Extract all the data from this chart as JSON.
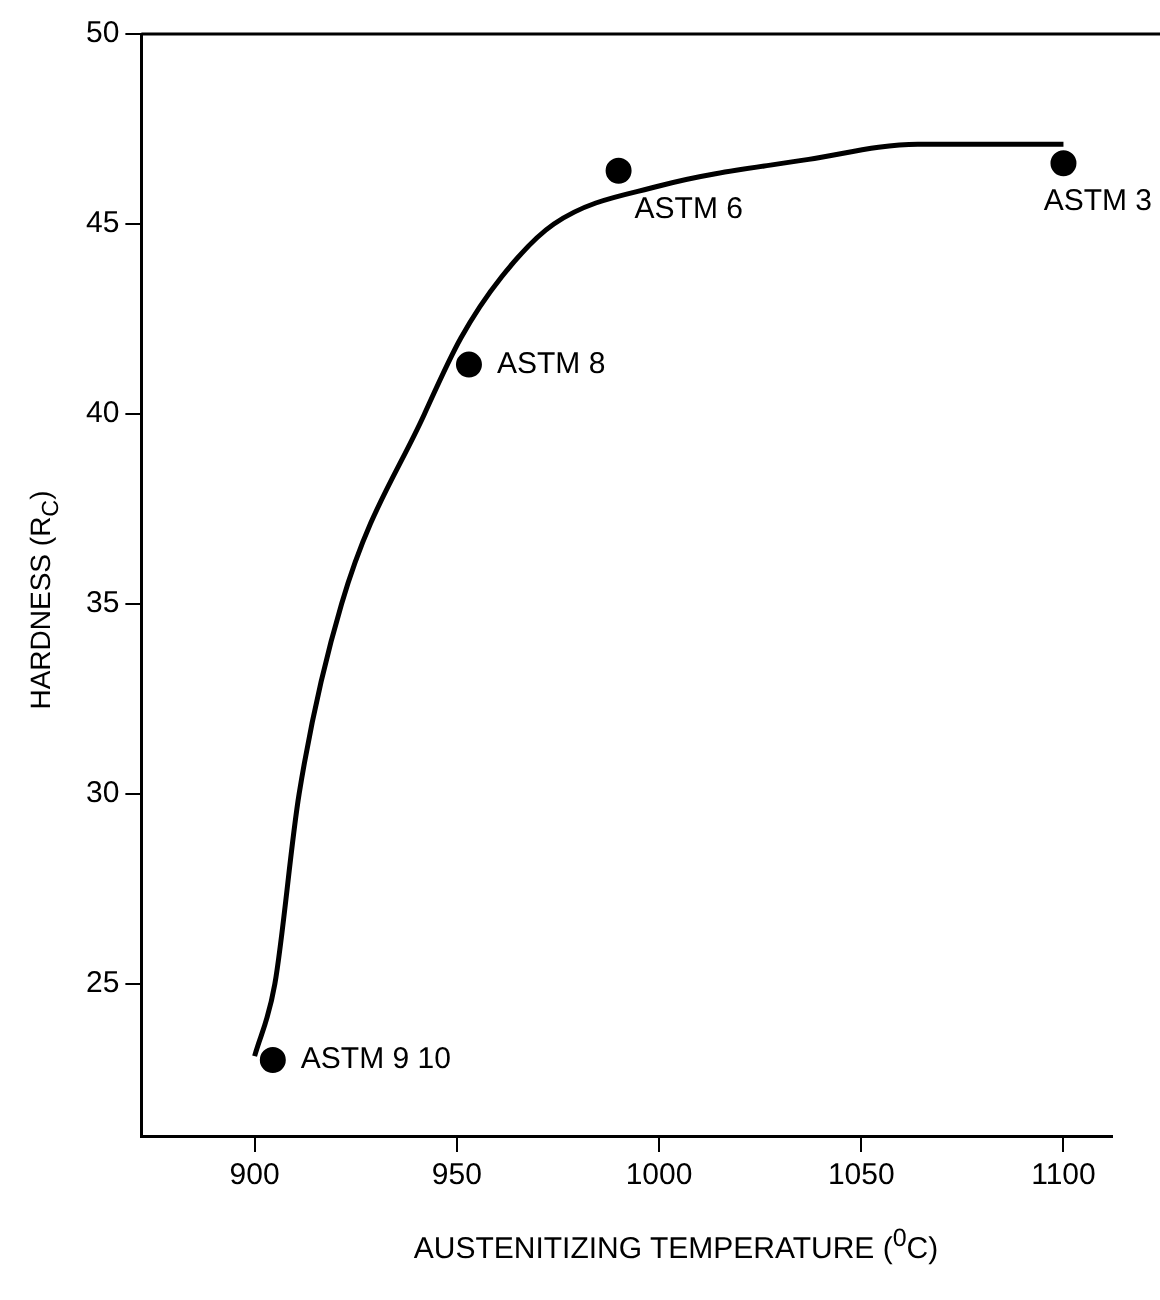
{
  "chart_data": {
    "type": "scatter",
    "xlabel": "AUSTENITIZING TEMPERATURE ($^{0}$C)",
    "ylabel": "HARDNESS (R$_{C}$)",
    "xlim": [
      872,
      1112
    ],
    "ylim": [
      21,
      50
    ],
    "xticks": [
      900,
      950,
      1000,
      1050,
      1100
    ],
    "yticks": [
      25,
      30,
      35,
      40,
      45,
      50
    ],
    "grid": false,
    "legend": false,
    "marker": "circle",
    "series": [
      {
        "type": "line",
        "marker": "none",
        "color": "#000000",
        "x": [
          900,
          905,
          911,
          921.5,
          942,
          951,
          961,
          974,
          1000,
          1037,
          1064,
          1100
        ],
        "values": [
          23.1,
          25,
          30,
          35,
          40,
          42,
          43.6,
          45,
          46,
          46.7,
          47.1,
          47.1
        ]
      },
      {
        "color": "#000000",
        "x": [
          904.5,
          953,
          990,
          1100
        ],
        "values": [
          23,
          41.3,
          46.4,
          46.6
        ]
      }
    ],
    "annotations": [
      {
        "text": "ASTM 9 10",
        "x": 904.5,
        "y": 23
      },
      {
        "text": "ASTM 8",
        "x": 953,
        "y": 41.3
      },
      {
        "text": "ASTM 6",
        "x": 990,
        "y": 46.4
      },
      {
        "text": "ASTM 3",
        "x": 1100,
        "y": 46.6
      }
    ]
  }
}
